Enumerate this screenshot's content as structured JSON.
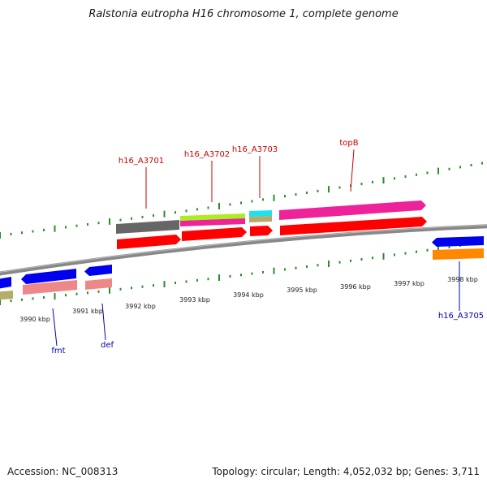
{
  "title": "Ralstonia eutropha H16 chromosome 1, complete genome",
  "footer": {
    "accession": "Accession: NC_008313",
    "summary": "Topology: circular; Length: 4,052,032 bp; Genes: 3,711"
  },
  "scale_labels": [
    "3990 kbp",
    "3991 kbp",
    "3992 kbp",
    "3993 kbp",
    "3994 kbp",
    "3995 kbp",
    "3996 kbp",
    "3997 kbp",
    "3998 kbp"
  ],
  "colors": {
    "backbone": "#888888",
    "tick": "#2a8c2a",
    "gene_label_top": "#cc0000",
    "gene_label_bottom": "#0000aa",
    "red": "#ff0000",
    "blue": "#0000ee",
    "salmon": "#ee8888",
    "gray": "#666666",
    "lime": "#aaee22",
    "magenta": "#ee2299",
    "cyan": "#22e0ee",
    "khaki": "#b5ac6a",
    "orange": "#ff8800"
  },
  "gene_labels": {
    "top": [
      "h16_A3701",
      "h16_A3702",
      "h16_A3703",
      "topB"
    ],
    "bottom": [
      "fmt",
      "def",
      "h16_A3705"
    ]
  }
}
